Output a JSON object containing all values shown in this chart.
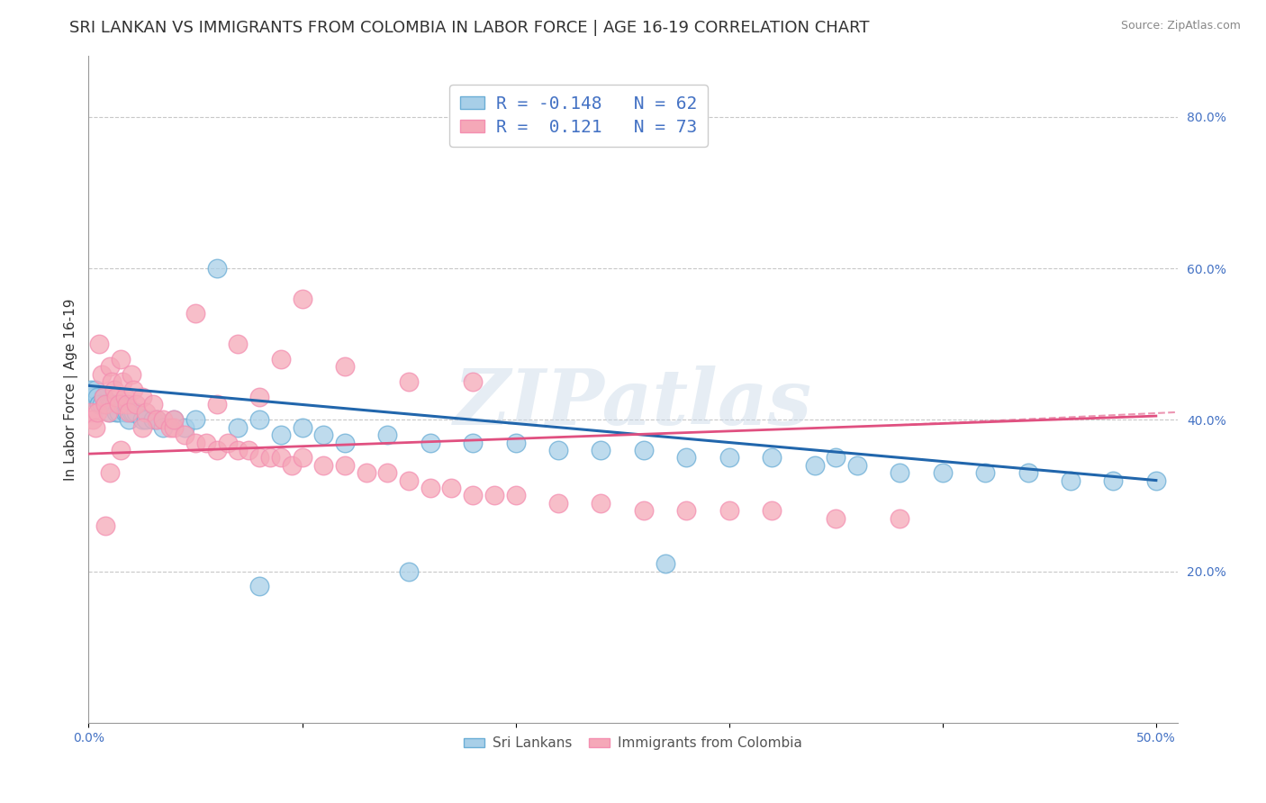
{
  "title": "SRI LANKAN VS IMMIGRANTS FROM COLOMBIA IN LABOR FORCE | AGE 16-19 CORRELATION CHART",
  "source": "Source: ZipAtlas.com",
  "ylabel": "In Labor Force | Age 16-19",
  "xlim": [
    0.0,
    0.51
  ],
  "ylim": [
    0.0,
    0.88
  ],
  "blue_R": -0.148,
  "blue_N": 62,
  "pink_R": 0.121,
  "pink_N": 73,
  "blue_color": "#a8cfe8",
  "pink_color": "#f5a8b8",
  "blue_edge_color": "#6baed6",
  "pink_edge_color": "#f48fb1",
  "blue_line_color": "#2166ac",
  "pink_line_color": "#e05080",
  "blue_trend_x0": 0.0,
  "blue_trend_y0": 0.445,
  "blue_trend_x1": 0.5,
  "blue_trend_y1": 0.32,
  "pink_trend_x0": 0.0,
  "pink_trend_y0": 0.355,
  "pink_trend_x1": 0.5,
  "pink_trend_y1": 0.405,
  "sri_lankans_x": [
    0.001,
    0.002,
    0.003,
    0.004,
    0.005,
    0.005,
    0.006,
    0.007,
    0.008,
    0.009,
    0.01,
    0.01,
    0.011,
    0.012,
    0.013,
    0.014,
    0.015,
    0.016,
    0.017,
    0.018,
    0.019,
    0.02,
    0.021,
    0.022,
    0.025,
    0.027,
    0.03,
    0.032,
    0.035,
    0.04,
    0.045,
    0.05,
    0.06,
    0.07,
    0.08,
    0.09,
    0.1,
    0.11,
    0.12,
    0.14,
    0.16,
    0.18,
    0.2,
    0.22,
    0.24,
    0.26,
    0.28,
    0.3,
    0.32,
    0.34,
    0.36,
    0.38,
    0.4,
    0.42,
    0.44,
    0.46,
    0.48,
    0.5,
    0.35,
    0.27,
    0.15,
    0.08
  ],
  "sri_lankans_y": [
    0.44,
    0.43,
    0.44,
    0.43,
    0.42,
    0.42,
    0.42,
    0.43,
    0.42,
    0.42,
    0.42,
    0.41,
    0.42,
    0.42,
    0.41,
    0.41,
    0.42,
    0.42,
    0.41,
    0.41,
    0.4,
    0.41,
    0.41,
    0.41,
    0.4,
    0.4,
    0.4,
    0.4,
    0.39,
    0.4,
    0.39,
    0.4,
    0.6,
    0.39,
    0.4,
    0.38,
    0.39,
    0.38,
    0.37,
    0.38,
    0.37,
    0.37,
    0.37,
    0.36,
    0.36,
    0.36,
    0.35,
    0.35,
    0.35,
    0.34,
    0.34,
    0.33,
    0.33,
    0.33,
    0.33,
    0.32,
    0.32,
    0.32,
    0.35,
    0.21,
    0.2,
    0.18
  ],
  "colombia_x": [
    0.001,
    0.002,
    0.003,
    0.004,
    0.005,
    0.006,
    0.007,
    0.008,
    0.009,
    0.01,
    0.011,
    0.012,
    0.013,
    0.014,
    0.015,
    0.016,
    0.017,
    0.018,
    0.019,
    0.02,
    0.021,
    0.022,
    0.025,
    0.027,
    0.03,
    0.032,
    0.035,
    0.038,
    0.04,
    0.045,
    0.05,
    0.055,
    0.06,
    0.065,
    0.07,
    0.075,
    0.08,
    0.085,
    0.09,
    0.095,
    0.1,
    0.11,
    0.12,
    0.13,
    0.14,
    0.15,
    0.16,
    0.17,
    0.18,
    0.19,
    0.2,
    0.22,
    0.24,
    0.26,
    0.28,
    0.3,
    0.32,
    0.35,
    0.38,
    0.1,
    0.05,
    0.07,
    0.09,
    0.12,
    0.15,
    0.18,
    0.08,
    0.06,
    0.04,
    0.025,
    0.015,
    0.01,
    0.008
  ],
  "colombia_y": [
    0.41,
    0.4,
    0.39,
    0.41,
    0.5,
    0.46,
    0.43,
    0.42,
    0.41,
    0.47,
    0.45,
    0.44,
    0.43,
    0.42,
    0.48,
    0.45,
    0.43,
    0.42,
    0.41,
    0.46,
    0.44,
    0.42,
    0.43,
    0.41,
    0.42,
    0.4,
    0.4,
    0.39,
    0.39,
    0.38,
    0.37,
    0.37,
    0.36,
    0.37,
    0.36,
    0.36,
    0.35,
    0.35,
    0.35,
    0.34,
    0.35,
    0.34,
    0.34,
    0.33,
    0.33,
    0.32,
    0.31,
    0.31,
    0.3,
    0.3,
    0.3,
    0.29,
    0.29,
    0.28,
    0.28,
    0.28,
    0.28,
    0.27,
    0.27,
    0.56,
    0.54,
    0.5,
    0.48,
    0.47,
    0.45,
    0.45,
    0.43,
    0.42,
    0.4,
    0.39,
    0.36,
    0.33,
    0.26
  ],
  "watermark_text": "ZIPatlas",
  "background_color": "#ffffff",
  "grid_color": "#c8c8c8",
  "title_fontsize": 13,
  "axis_label_fontsize": 11,
  "tick_label_color": "#4472c4",
  "legend_text_color": "#4472c4"
}
